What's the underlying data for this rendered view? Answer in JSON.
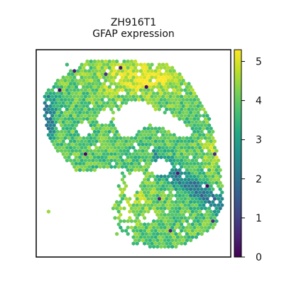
{
  "chart_data": {
    "type": "scatter",
    "title": "ZH916T1",
    "subtitle": "GFAP expression",
    "xlabel": "",
    "ylabel": "",
    "colorbar": {
      "label": "",
      "range": [
        0,
        5.3
      ],
      "ticks": [
        0,
        1,
        2,
        3,
        4,
        5
      ],
      "tick_labels": [
        "0",
        "1",
        "2",
        "3",
        "4",
        "5"
      ],
      "colormap": "viridis"
    },
    "axes_ticks_visible": false,
    "grid": false,
    "legend": "none",
    "spots": {
      "marker": "hexagon",
      "description_note": "",
      "count_approx": 2600
    }
  }
}
